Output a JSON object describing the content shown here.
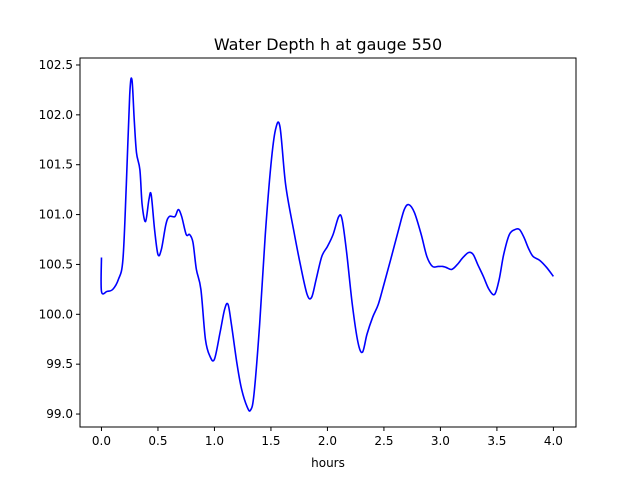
{
  "chart_data": {
    "type": "line",
    "title": "Water Depth h at gauge 550",
    "xlabel": "hours",
    "ylabel": "",
    "xlim": [
      -0.19,
      4.2
    ],
    "ylim": [
      98.87,
      102.57
    ],
    "xticks": [
      0.0,
      0.5,
      1.0,
      1.5,
      2.0,
      2.5,
      3.0,
      3.5,
      4.0
    ],
    "xtick_labels": [
      "0.0",
      "0.5",
      "1.0",
      "1.5",
      "2.0",
      "2.5",
      "3.0",
      "3.5",
      "4.0"
    ],
    "yticks": [
      99.0,
      99.5,
      100.0,
      100.5,
      101.0,
      101.5,
      102.0,
      102.5
    ],
    "ytick_labels": [
      "99.0",
      "99.5",
      "100.0",
      "100.5",
      "101.0",
      "101.5",
      "102.0",
      "102.5"
    ],
    "grid": false,
    "legend": "none",
    "series": [
      {
        "color": "#0000ff",
        "x": [
          0.0,
          0.0,
          0.05,
          0.1,
          0.15,
          0.19,
          0.22,
          0.25,
          0.27,
          0.29,
          0.31,
          0.34,
          0.36,
          0.39,
          0.42,
          0.44,
          0.47,
          0.5,
          0.53,
          0.57,
          0.6,
          0.65,
          0.68,
          0.71,
          0.75,
          0.78,
          0.81,
          0.84,
          0.88,
          0.92,
          0.96,
          1.0,
          1.05,
          1.09,
          1.12,
          1.15,
          1.2,
          1.24,
          1.29,
          1.32,
          1.35,
          1.4,
          1.45,
          1.5,
          1.54,
          1.58,
          1.63,
          1.7,
          1.76,
          1.82,
          1.86,
          1.9,
          1.95,
          2.0,
          2.05,
          2.1,
          2.13,
          2.17,
          2.22,
          2.27,
          2.31,
          2.35,
          2.4,
          2.45,
          2.5,
          2.56,
          2.63,
          2.68,
          2.72,
          2.77,
          2.83,
          2.88,
          2.93,
          2.98,
          3.02,
          3.05,
          3.1,
          3.15,
          3.2,
          3.25,
          3.29,
          3.33,
          3.38,
          3.43,
          3.48,
          3.52,
          3.56,
          3.61,
          3.66,
          3.7,
          3.74,
          3.78,
          3.82,
          3.88,
          3.94,
          4.0
        ],
        "y": [
          100.57,
          100.23,
          100.23,
          100.25,
          100.35,
          100.55,
          101.3,
          102.2,
          102.35,
          101.95,
          101.62,
          101.45,
          101.1,
          100.93,
          101.15,
          101.2,
          100.85,
          100.6,
          100.65,
          100.9,
          100.98,
          100.98,
          101.05,
          100.98,
          100.8,
          100.8,
          100.72,
          100.45,
          100.25,
          99.75,
          99.58,
          99.55,
          99.82,
          100.05,
          100.1,
          99.9,
          99.5,
          99.25,
          99.07,
          99.04,
          99.2,
          99.9,
          100.8,
          101.5,
          101.85,
          101.88,
          101.3,
          100.85,
          100.5,
          100.2,
          100.17,
          100.35,
          100.58,
          100.68,
          100.8,
          100.98,
          100.95,
          100.62,
          100.1,
          99.72,
          99.62,
          99.8,
          99.97,
          100.1,
          100.3,
          100.55,
          100.85,
          101.05,
          101.1,
          101.02,
          100.8,
          100.58,
          100.48,
          100.48,
          100.48,
          100.47,
          100.45,
          100.5,
          100.57,
          100.62,
          100.6,
          100.5,
          100.38,
          100.25,
          100.2,
          100.35,
          100.6,
          100.8,
          100.85,
          100.85,
          100.77,
          100.66,
          100.58,
          100.54,
          100.47,
          100.38
        ]
      }
    ]
  }
}
